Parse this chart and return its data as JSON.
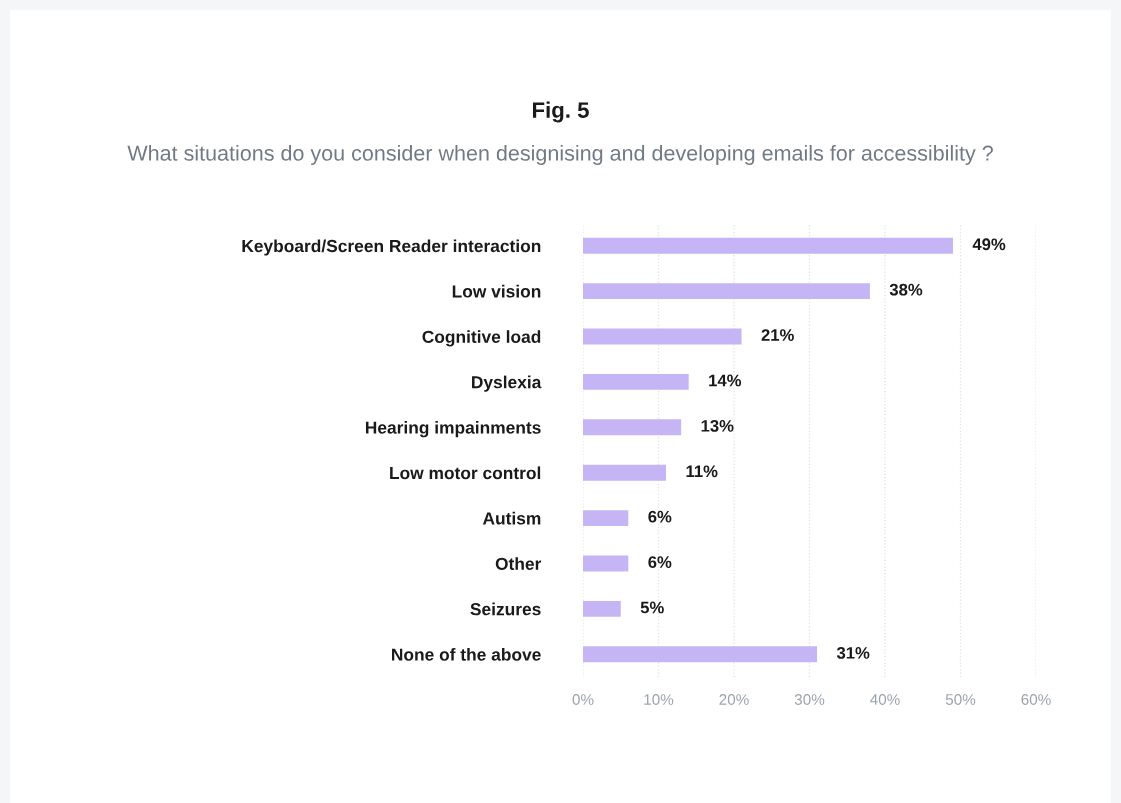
{
  "chart_data": {
    "type": "bar",
    "orientation": "horizontal",
    "title": "Fig. 5",
    "subtitle": "What situations do you consider when designising and developing emails for accessibility ?",
    "categories": [
      "Keyboard/Screen Reader interaction",
      "Low vision",
      "Cognitive load",
      "Dyslexia",
      "Hearing impainments",
      "Low motor control",
      "Autism",
      "Other",
      "Seizures",
      "None of the above"
    ],
    "values": [
      49,
      38,
      21,
      14,
      13,
      11,
      6,
      6,
      5,
      31
    ],
    "value_labels": [
      "49%",
      "38%",
      "21%",
      "14%",
      "13%",
      "11%",
      "6%",
      "6%",
      "5%",
      "31%"
    ],
    "color": "#c5b5f5",
    "xlim": [
      0,
      60
    ],
    "xticks": [
      {
        "value": 0,
        "label": "0%"
      },
      {
        "value": 10,
        "label": "10%"
      },
      {
        "value": 20,
        "label": "20%"
      },
      {
        "value": 30,
        "label": "30%"
      },
      {
        "value": 40,
        "label": "40%"
      },
      {
        "value": 50,
        "label": "50%"
      },
      {
        "value": 60,
        "label": "60%"
      }
    ],
    "grid": "x",
    "line_style": "dotted"
  }
}
